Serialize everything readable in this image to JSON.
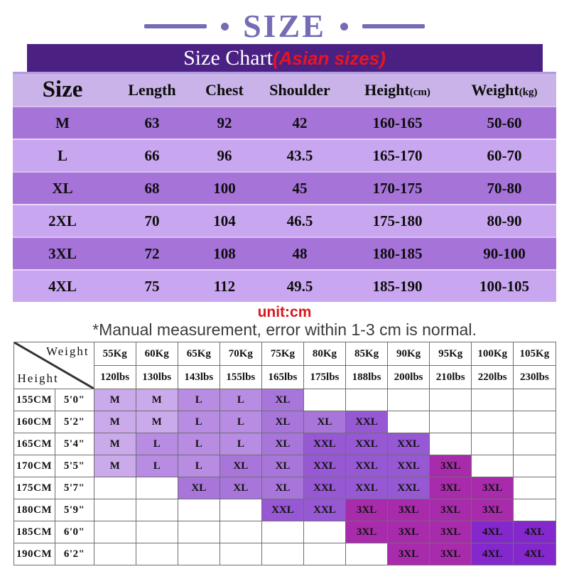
{
  "page": {
    "top_title": "SIZE",
    "banner_title": "Size Chart",
    "banner_subtitle": "(Asian sizes)",
    "unit_note": "unit:cm",
    "measure_note": "*Manual measurement, error within 1-3 cm is normal."
  },
  "size_table": {
    "columns": [
      {
        "label": "Size",
        "suffix": ""
      },
      {
        "label": "Length",
        "suffix": ""
      },
      {
        "label": "Chest",
        "suffix": ""
      },
      {
        "label": "Shoulder",
        "suffix": ""
      },
      {
        "label": "Height",
        "suffix": "(cm)"
      },
      {
        "label": "Weight",
        "suffix": "(kg)"
      }
    ],
    "rows": [
      [
        "M",
        "63",
        "92",
        "42",
        "160-165",
        "50-60"
      ],
      [
        "L",
        "66",
        "96",
        "43.5",
        "165-170",
        "60-70"
      ],
      [
        "XL",
        "68",
        "100",
        "45",
        "170-175",
        "70-80"
      ],
      [
        "2XL",
        "70",
        "104",
        "46.5",
        "175-180",
        "80-90"
      ],
      [
        "3XL",
        "72",
        "108",
        "48",
        "180-185",
        "90-100"
      ],
      [
        "4XL",
        "75",
        "112",
        "49.5",
        "185-190",
        "100-105"
      ]
    ]
  },
  "matrix": {
    "corner_weight": "Weight",
    "corner_height": "Height",
    "weight_columns": [
      {
        "kg": "55Kg",
        "lbs": "120lbs"
      },
      {
        "kg": "60Kg",
        "lbs": "130lbs"
      },
      {
        "kg": "65Kg",
        "lbs": "143lbs"
      },
      {
        "kg": "70Kg",
        "lbs": "155lbs"
      },
      {
        "kg": "75Kg",
        "lbs": "165lbs"
      },
      {
        "kg": "80Kg",
        "lbs": "175lbs"
      },
      {
        "kg": "85Kg",
        "lbs": "188lbs"
      },
      {
        "kg": "90Kg",
        "lbs": "200lbs"
      },
      {
        "kg": "95Kg",
        "lbs": "210lbs"
      },
      {
        "kg": "100Kg",
        "lbs": "220lbs"
      },
      {
        "kg": "105Kg",
        "lbs": "230lbs"
      }
    ],
    "rows": [
      {
        "cm": "155CM",
        "ft": "5'0\"",
        "cells": [
          "M",
          "M",
          "L",
          "L",
          "XL",
          "",
          "",
          "",
          "",
          "",
          ""
        ]
      },
      {
        "cm": "160CM",
        "ft": "5'2\"",
        "cells": [
          "M",
          "M",
          "L",
          "L",
          "XL",
          "XL",
          "XXL",
          "",
          "",
          "",
          ""
        ]
      },
      {
        "cm": "165CM",
        "ft": "5'4\"",
        "cells": [
          "M",
          "L",
          "L",
          "L",
          "XL",
          "XXL",
          "XXL",
          "XXL",
          "",
          "",
          ""
        ]
      },
      {
        "cm": "170CM",
        "ft": "5'5\"",
        "cells": [
          "M",
          "L",
          "L",
          "XL",
          "XL",
          "XXL",
          "XXL",
          "XXL",
          "3XL",
          "",
          ""
        ]
      },
      {
        "cm": "175CM",
        "ft": "5'7\"",
        "cells": [
          "",
          "",
          "XL",
          "XL",
          "XL",
          "XXL",
          "XXL",
          "XXL",
          "3XL",
          "3XL",
          ""
        ]
      },
      {
        "cm": "180CM",
        "ft": "5'9\"",
        "cells": [
          "",
          "",
          "",
          "",
          "XXL",
          "XXL",
          "3XL",
          "3XL",
          "3XL",
          "3XL",
          ""
        ]
      },
      {
        "cm": "185CM",
        "ft": "6'0\"",
        "cells": [
          "",
          "",
          "",
          "",
          "",
          "",
          "3XL",
          "3XL",
          "3XL",
          "4XL",
          "4XL"
        ]
      },
      {
        "cm": "190CM",
        "ft": "6'2\"",
        "cells": [
          "",
          "",
          "",
          "",
          "",
          "",
          "",
          "3XL",
          "3XL",
          "4XL",
          "4XL"
        ]
      }
    ]
  },
  "colors": {
    "top_title_purple": "#746cb4",
    "banner_bg": "#4a2183",
    "banner_strip": "#b29ade",
    "subtitle_red": "#e8151e",
    "unit_red": "#d8171f",
    "table_header_bg": "#c9b3e8",
    "table_row_odd": "#a673d9",
    "table_row_even": "#c9a6f0",
    "sizes": {
      "M": "#cbaaec",
      "L": "#b78ce2",
      "XL": "#a876da",
      "XXL": "#9758d4",
      "3XL": "#a82bac",
      "4XL": "#8428cd"
    }
  }
}
